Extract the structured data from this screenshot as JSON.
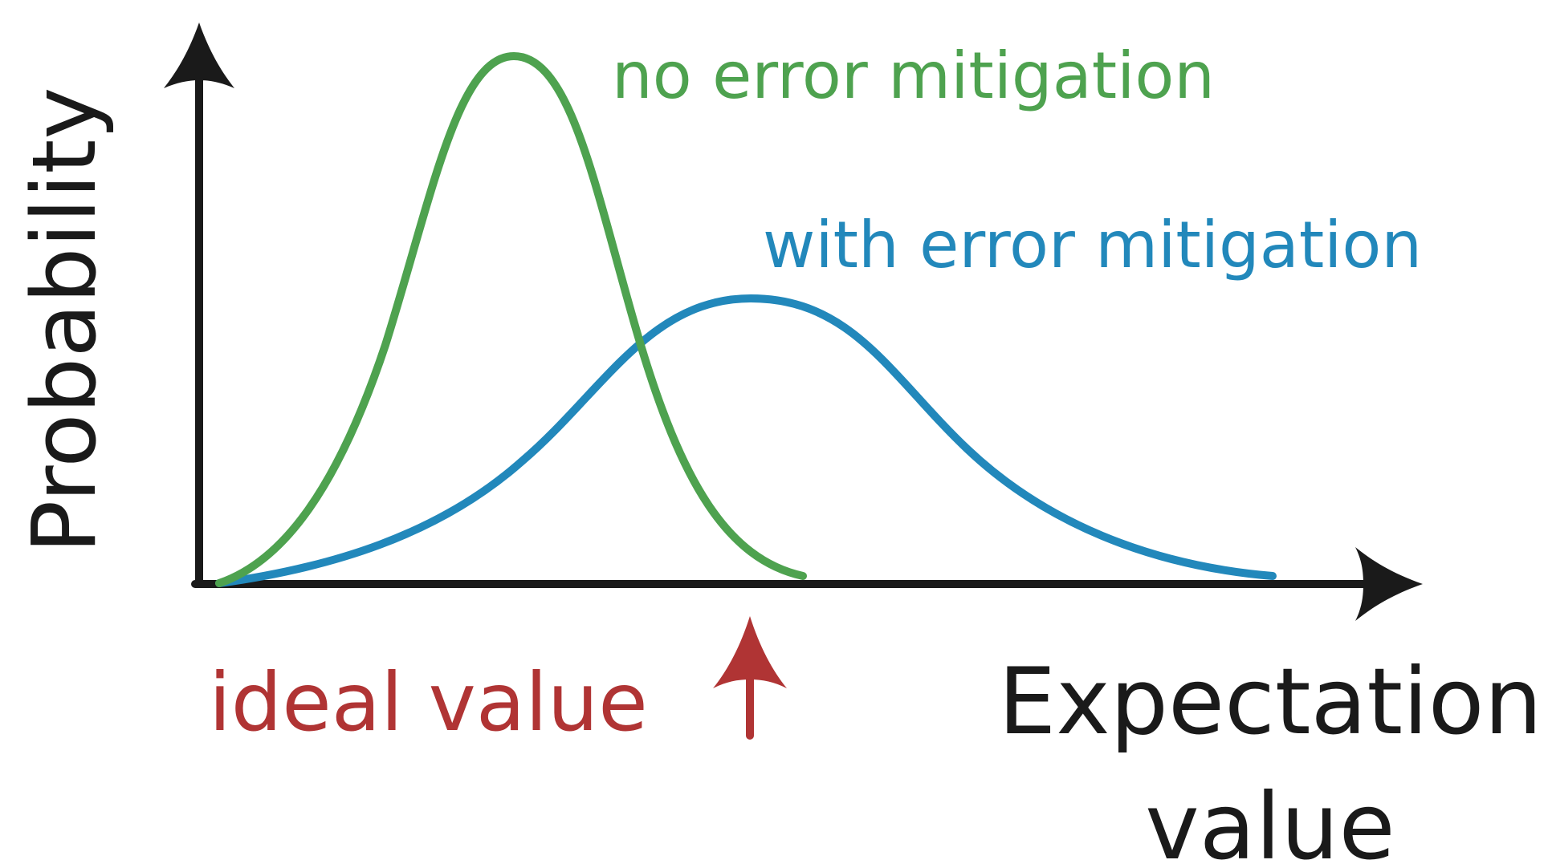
{
  "diagram": {
    "axes": {
      "y_label": "Probability",
      "x_label_line1": "Expectation",
      "x_label_line2": "value"
    },
    "curves": [
      {
        "id": "no-mitigation",
        "label": "no error mitigation",
        "color": "#4ea24f",
        "shape": "narrow tall bell, peak left of the ideal value"
      },
      {
        "id": "with-mitigation",
        "label": "with error mitigation",
        "color": "#2288bb",
        "shape": "wide low bell, peak at the ideal value"
      }
    ],
    "marker": {
      "label": "ideal value",
      "color": "#b03434",
      "icon": "up-arrow-icon"
    },
    "axis_color": "#1a1a1a"
  }
}
